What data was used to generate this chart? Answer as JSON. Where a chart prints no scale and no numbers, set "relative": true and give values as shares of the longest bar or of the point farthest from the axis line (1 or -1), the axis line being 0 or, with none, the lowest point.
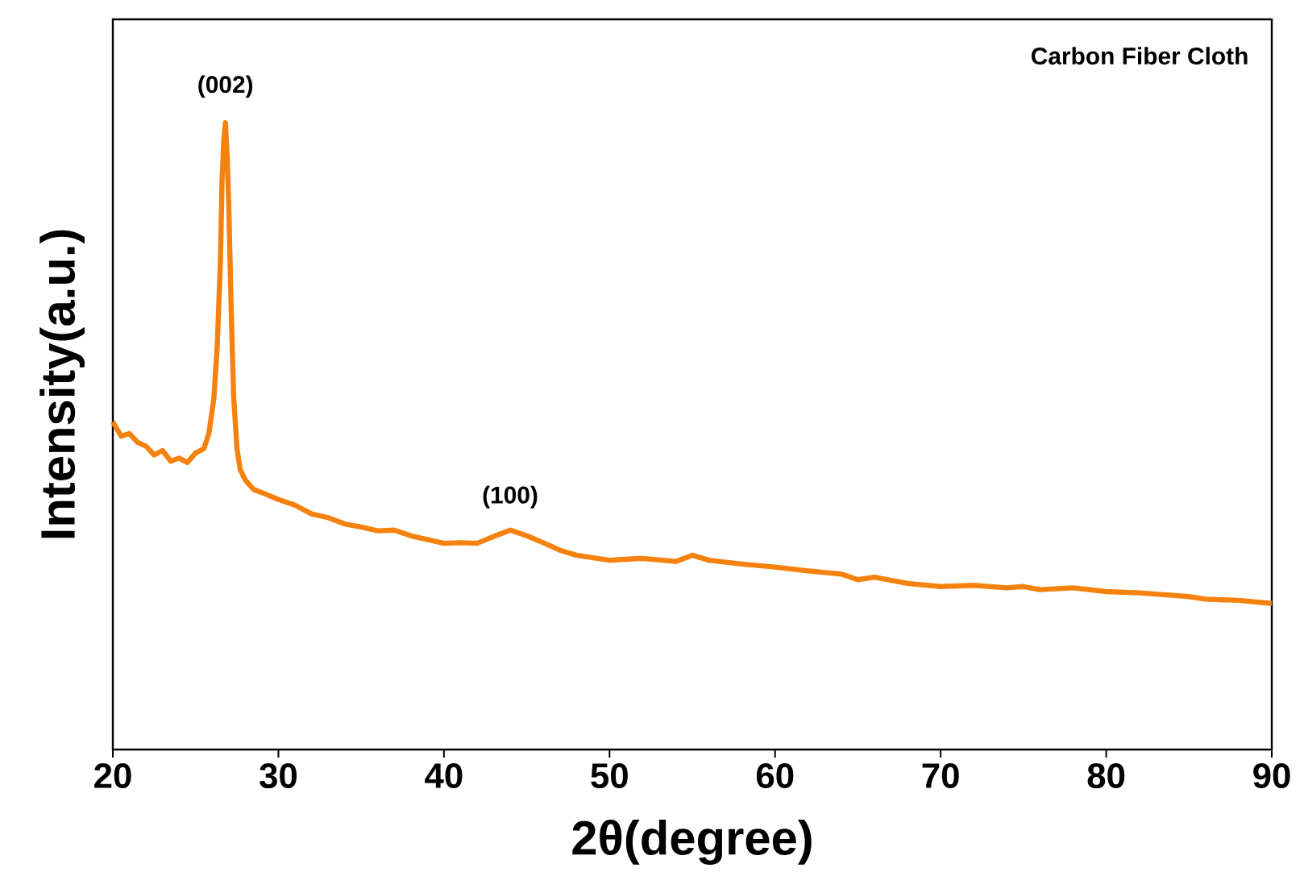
{
  "chart_data": {
    "type": "line",
    "relative": true,
    "xlabel": "2θ(degree)",
    "ylabel": "Intensity(a.u.)",
    "xlim": [
      20,
      90
    ],
    "xticks": [
      20,
      30,
      40,
      50,
      60,
      70,
      80,
      90
    ],
    "grid": false,
    "marker": "none",
    "line_style": "solid",
    "tick_labels": "x",
    "series": [
      {
        "color": "#f5820f",
        "x": [
          20,
          20.5,
          21,
          21.5,
          22,
          22.5,
          23,
          23.5,
          24,
          24.5,
          25,
          25.5,
          25.8,
          26.1,
          26.3,
          26.5,
          26.6,
          26.7,
          26.8,
          26.9,
          27.0,
          27.15,
          27.3,
          27.5,
          27.7,
          28.0,
          28.5,
          29,
          30,
          31,
          32,
          33,
          34,
          35,
          36,
          37,
          38,
          39,
          40,
          41,
          42,
          43,
          43.5,
          44,
          45,
          46,
          47,
          48,
          50,
          52,
          54,
          55,
          56,
          58,
          60,
          62,
          64,
          65,
          66,
          68,
          70,
          72,
          74,
          75,
          76,
          78,
          80,
          82,
          84,
          85,
          86,
          88,
          90
        ],
        "values": [
          0.523,
          0.5,
          0.504,
          0.49,
          0.484,
          0.47,
          0.477,
          0.46,
          0.465,
          0.458,
          0.473,
          0.48,
          0.504,
          0.56,
          0.64,
          0.78,
          0.911,
          0.97,
          1,
          0.95,
          0.872,
          0.7,
          0.562,
          0.48,
          0.446,
          0.43,
          0.415,
          0.41,
          0.399,
          0.39,
          0.376,
          0.37,
          0.36,
          0.355,
          0.349,
          0.35,
          0.341,
          0.335,
          0.329,
          0.33,
          0.329,
          0.34,
          0.345,
          0.35,
          0.341,
          0.33,
          0.318,
          0.31,
          0.302,
          0.305,
          0.3,
          0.31,
          0.302,
          0.296,
          0.291,
          0.285,
          0.28,
          0.271,
          0.275,
          0.265,
          0.26,
          0.262,
          0.258,
          0.26,
          0.255,
          0.258,
          0.252,
          0.25,
          0.246,
          0.244,
          0.24,
          0.238,
          0.233
        ]
      }
    ],
    "annotations": [
      {
        "text": "(002)",
        "x": 26.8,
        "y": 1
      },
      {
        "text": "(100)",
        "x": 44,
        "y": 0.345
      },
      "Carbon Fiber Cloth"
    ]
  }
}
